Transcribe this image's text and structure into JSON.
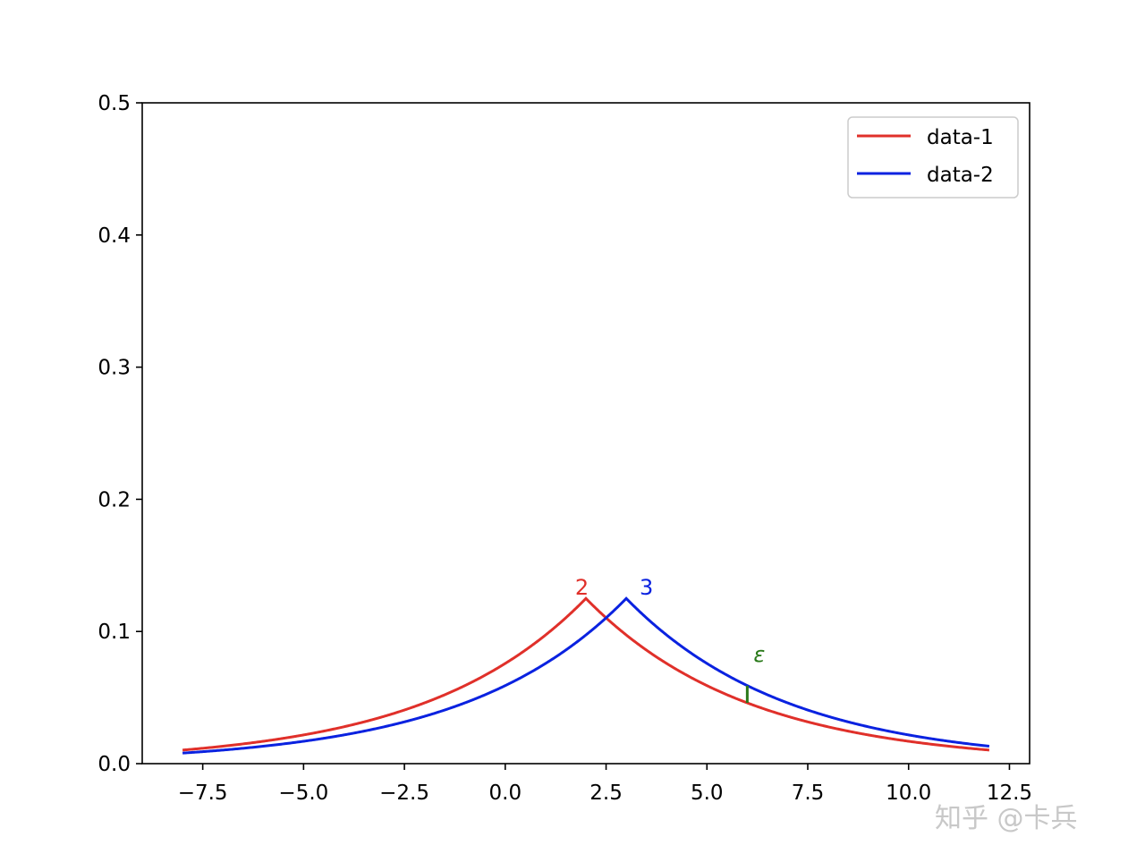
{
  "chart_data": {
    "type": "line",
    "title": "",
    "xlabel": "",
    "ylabel": "",
    "xlim": [
      -9,
      13
    ],
    "ylim": [
      0,
      0.5
    ],
    "x_ticks": [
      "−7.5",
      "−5.0",
      "−2.5",
      "0.0",
      "2.5",
      "5.0",
      "7.5",
      "10.0",
      "12.5"
    ],
    "x_tick_values": [
      -7.5,
      -5,
      -2.5,
      0,
      2.5,
      5,
      7.5,
      10,
      12.5
    ],
    "y_ticks": [
      "0.0",
      "0.1",
      "0.2",
      "0.3",
      "0.4",
      "0.5"
    ],
    "y_tick_values": [
      0,
      0.1,
      0.2,
      0.3,
      0.4,
      0.5
    ],
    "grid": false,
    "legend_position": "top-right",
    "x_range": [
      -8,
      12
    ],
    "series": [
      {
        "name": "data-1",
        "color": "#e0302a",
        "distribution": "laplace",
        "mu": 2,
        "b": 4
      },
      {
        "name": "data-2",
        "color": "#0a22e0",
        "distribution": "laplace",
        "mu": 3,
        "b": 4
      }
    ],
    "annotations": [
      {
        "text": "2",
        "x": 1.9,
        "y": 0.128,
        "color": "#e0302a"
      },
      {
        "text": "3",
        "x": 3.5,
        "y": 0.128,
        "color": "#0a22e0"
      },
      {
        "text": "ε",
        "x": 6.3,
        "y": 0.077,
        "color": "#2a7a1a"
      }
    ],
    "epsilon_marker": {
      "x": 6,
      "y_from": 0.046,
      "y_to": 0.059,
      "color": "#2a7a1a"
    }
  },
  "watermark": "知乎 @卡兵"
}
